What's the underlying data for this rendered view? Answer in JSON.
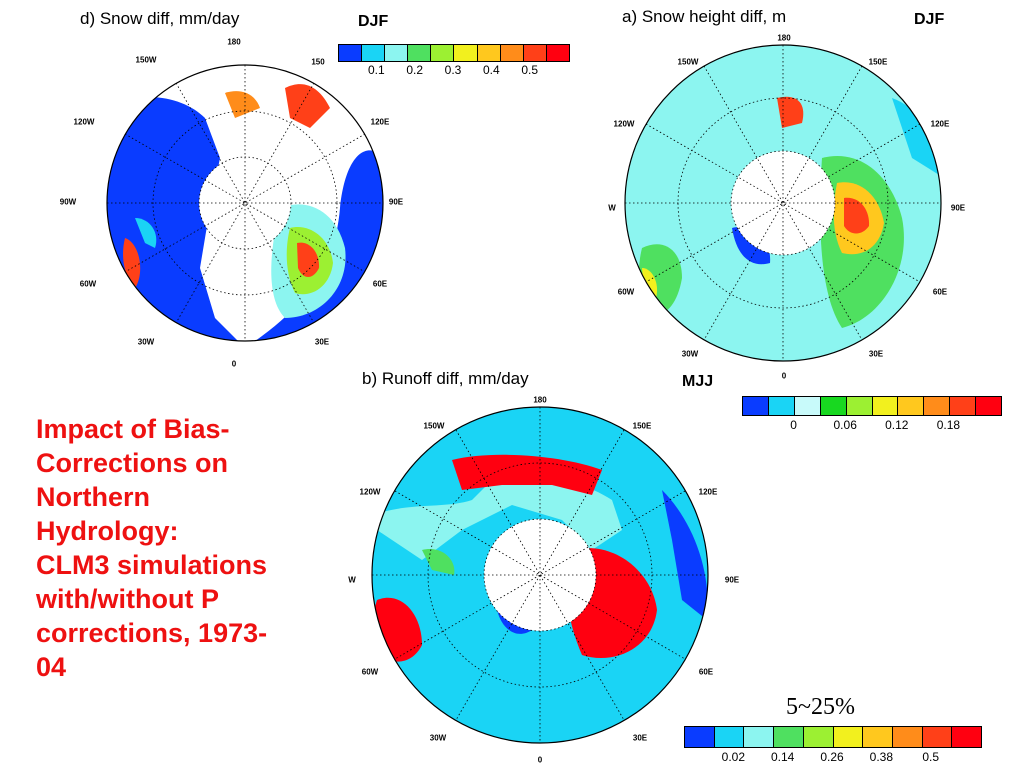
{
  "panels": {
    "snow_diff": {
      "title": "d) Snow diff, mm/day",
      "season": "DJF"
    },
    "snow_height": {
      "title": "a) Snow height diff, m",
      "season": "DJF"
    },
    "runoff": {
      "title": "b) Runoff diff, mm/day",
      "season": "MJJ"
    }
  },
  "colorbars": {
    "snow_diff": {
      "ticks": [
        "0.1",
        "0.2",
        "0.3",
        "0.4",
        "0.5"
      ],
      "colors": [
        "#0a3cff",
        "#1ad4f5",
        "#8cf5f0",
        "#4fe060",
        "#9cf032",
        "#f2f01e",
        "#ffc81e",
        "#ff8c1a",
        "#ff4018",
        "#ff0010"
      ]
    },
    "snow_height_runoff": {
      "ticks": [
        "0",
        "0.06",
        "0.12",
        "0.18"
      ],
      "colors": [
        "#0a3cff",
        "#1ad4f5",
        "#c8fafa",
        "#18d820",
        "#9cf032",
        "#f2f01e",
        "#ffc81e",
        "#ff8c1a",
        "#ff4018",
        "#ff0010"
      ]
    },
    "runoff_pct": {
      "ticks": [
        "0.02",
        "0.14",
        "0.26",
        "0.38",
        "0.5"
      ],
      "colors": [
        "#0a3cff",
        "#1ad4f5",
        "#8cf5f0",
        "#4fe060",
        "#9cf032",
        "#f2f01e",
        "#ffc81e",
        "#ff8c1a",
        "#ff4018",
        "#ff0010"
      ]
    }
  },
  "longitude_labels": {
    "snow_diff": [
      "180",
      "150",
      "120W",
      "120E",
      "150W",
      "90W",
      "90E",
      "60W",
      "60E",
      "30W",
      "30E",
      "0"
    ],
    "snow_height": [
      "180",
      "150W",
      "150E",
      "120W",
      "120E",
      "W",
      "90E",
      "60W",
      "60E",
      "30W",
      "30E",
      "0"
    ],
    "runoff": [
      "180",
      "150W",
      "150E",
      "120W",
      "120E",
      "W",
      "90E",
      "60W",
      "60E",
      "30W",
      "30E",
      "0"
    ]
  },
  "headline": [
    "Impact of Bias-",
    "Corrections on",
    "Northern",
    "Hydrology:",
    "CLM3 simulations",
    "with/without P",
    "corrections, 1973-",
    "04"
  ],
  "range_note": "5~25%",
  "colors": {
    "headline": "#ee1111",
    "ocean_blue": "#0a3cff",
    "land_cyan": "#8cf5f0",
    "hot_red": "#ff0010"
  }
}
